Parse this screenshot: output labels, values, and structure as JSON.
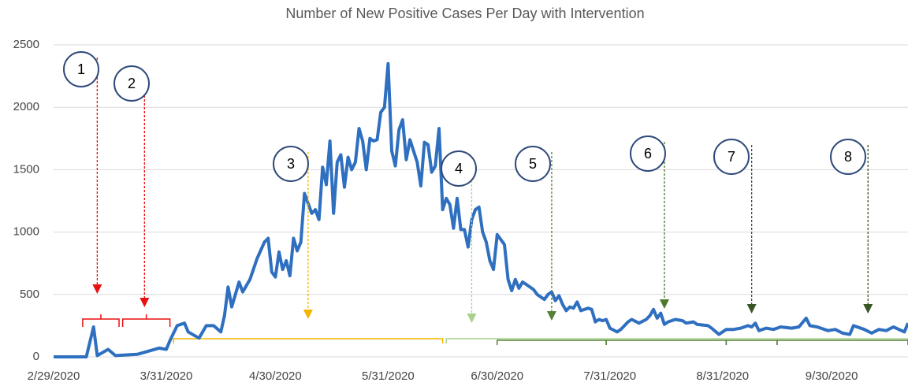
{
  "chart_data": {
    "type": "line",
    "title": "Number of New Positive Cases Per Day with Intervention",
    "x": [
      "2/29/2020",
      "3/9/2020",
      "3/11/2020",
      "3/12/2020",
      "3/15/2020",
      "3/17/2020",
      "3/23/2020",
      "3/29/2020",
      "3/31/2020",
      "4/1/2020",
      "4/3/2020",
      "4/5/2020",
      "4/6/2020",
      "4/9/2020",
      "4/11/2020",
      "4/13/2020",
      "4/15/2020",
      "4/16/2020",
      "4/17/2020",
      "4/18/2020",
      "4/20/2020",
      "4/21/2020",
      "4/23/2020",
      "4/25/2020",
      "4/27/2020",
      "4/28/2020",
      "4/29/2020",
      "4/30/2020",
      "5/1/2020",
      "5/2/2020",
      "5/3/2020",
      "5/4/2020",
      "5/5/2020",
      "5/6/2020",
      "5/7/2020",
      "5/8/2020",
      "5/10/2020",
      "5/11/2020",
      "5/12/2020",
      "5/13/2020",
      "5/14/2020",
      "5/15/2020",
      "5/16/2020",
      "5/17/2020",
      "5/18/2020",
      "5/19/2020",
      "5/20/2020",
      "5/21/2020",
      "5/22/2020",
      "5/23/2020",
      "5/24/2020",
      "5/25/2020",
      "5/26/2020",
      "5/27/2020",
      "5/28/2020",
      "5/29/2020",
      "5/30/2020",
      "5/31/2020",
      "6/1/2020",
      "6/2/2020",
      "6/3/2020",
      "6/4/2020",
      "6/5/2020",
      "6/6/2020",
      "6/7/2020",
      "6/8/2020",
      "6/9/2020",
      "6/10/2020",
      "6/11/2020",
      "6/12/2020",
      "6/13/2020",
      "6/14/2020",
      "6/15/2020",
      "6/16/2020",
      "6/17/2020",
      "6/18/2020",
      "6/19/2020",
      "6/20/2020",
      "6/21/2020",
      "6/22/2020",
      "6/23/2020",
      "6/24/2020",
      "6/25/2020",
      "6/26/2020",
      "6/27/2020",
      "6/28/2020",
      "6/29/2020",
      "6/30/2020",
      "7/2/2020",
      "7/3/2020",
      "7/4/2020",
      "7/5/2020",
      "7/6/2020",
      "7/7/2020",
      "7/8/2020",
      "7/10/2020",
      "7/11/2020",
      "7/13/2020",
      "7/14/2020",
      "7/15/2020",
      "7/16/2020",
      "7/17/2020",
      "7/18/2020",
      "7/19/2020",
      "7/20/2020",
      "7/21/2020",
      "7/22/2020",
      "7/23/2020",
      "7/25/2020",
      "7/26/2020",
      "7/27/2020",
      "7/28/2020",
      "7/29/2020",
      "7/30/2020",
      "7/31/2020",
      "8/2/2020",
      "8/3/2020",
      "8/5/2020",
      "8/6/2020",
      "8/8/2020",
      "8/10/2020",
      "8/11/2020",
      "8/12/2020",
      "8/13/2020",
      "8/14/2020",
      "8/15/2020",
      "8/16/2020",
      "8/18/2020",
      "8/20/2020",
      "8/21/2020",
      "8/23/2020",
      "8/24/2020",
      "8/27/2020",
      "8/28/2020",
      "8/30/2020",
      "9/1/2020",
      "9/3/2020",
      "9/5/2020",
      "9/7/2020",
      "9/8/2020",
      "9/9/2020",
      "9/10/2020",
      "9/12/2020",
      "9/14/2020",
      "9/16/2020",
      "9/19/2020",
      "9/21/2020",
      "9/23/2020",
      "9/24/2020",
      "9/26/2020",
      "9/29/2020",
      "10/1/2020",
      "10/3/2020",
      "10/5/2020",
      "10/6/2020",
      "10/9/2020",
      "10/11/2020",
      "10/13/2020",
      "10/15/2020",
      "10/17/2020",
      "10/20/2020",
      "10/21/2020"
    ],
    "series": [
      {
        "color": "#2e6fc0",
        "values": [
          0,
          0,
          240,
          10,
          60,
          10,
          20,
          70,
          60,
          130,
          250,
          270,
          200,
          150,
          250,
          250,
          200,
          330,
          560,
          400,
          600,
          520,
          620,
          790,
          920,
          950,
          680,
          640,
          840,
          700,
          770,
          650,
          950,
          850,
          920,
          1310,
          1150,
          1180,
          1100,
          1520,
          1380,
          1730,
          1150,
          1560,
          1620,
          1360,
          1600,
          1500,
          1560,
          1830,
          1730,
          1500,
          1750,
          1730,
          1740,
          1960,
          2000,
          2350,
          1650,
          1530,
          1820,
          1900,
          1580,
          1740,
          1650,
          1560,
          1370,
          1720,
          1700,
          1480,
          1530,
          1830,
          1180,
          1270,
          1220,
          1030,
          1270,
          1020,
          1020,
          880,
          1100,
          1180,
          1200,
          1000,
          920,
          770,
          700,
          980,
          900,
          620,
          530,
          620,
          550,
          600,
          580,
          540,
          500,
          460,
          500,
          520,
          450,
          490,
          420,
          370,
          400,
          390,
          440,
          370,
          390,
          380,
          280,
          300,
          290,
          300,
          230,
          200,
          220,
          280,
          300,
          270,
          300,
          330,
          380,
          310,
          350,
          260,
          280,
          300,
          290,
          270,
          280,
          260,
          250,
          230,
          180,
          220,
          220,
          230,
          250,
          240,
          270,
          210,
          230,
          220,
          240,
          230,
          240,
          310,
          250,
          240,
          210,
          220,
          190,
          180,
          250,
          220,
          190,
          220,
          210,
          240,
          200,
          270
        ]
      }
    ],
    "xlim": [
      "2/29/2020",
      "10/21/2020"
    ],
    "xticks": [
      "2/29/2020",
      "3/31/2020",
      "4/30/2020",
      "5/31/2020",
      "6/30/2020",
      "7/31/2020",
      "8/31/2020",
      "9/30/2020"
    ],
    "ylim": [
      0,
      2500
    ],
    "yticks": [
      0,
      500,
      1000,
      1500,
      2000,
      2500
    ],
    "grid": true,
    "annotations": [
      {
        "label": "1",
        "x": "3/12/2020",
        "color": "#e81010"
      },
      {
        "label": "2",
        "x": "3/25/2020",
        "color": "#e81010"
      },
      {
        "label": "3",
        "x": "5/9/2020",
        "color": "#f2b600"
      },
      {
        "label": "4",
        "x": "6/23/2020",
        "color": "#a9d18e"
      },
      {
        "label": "5",
        "x": "7/15/2020",
        "color": "#548235"
      },
      {
        "label": "6",
        "x": "8/15/2020",
        "color": "#4a7a2a"
      },
      {
        "label": "7",
        "x": "9/8/2020",
        "color": "#375623"
      },
      {
        "label": "8",
        "x": "10/10/2020",
        "color": "#375623"
      }
    ],
    "brackets": [
      {
        "start": "3/8/2020",
        "end": "3/18/2020",
        "color": "#e81010"
      },
      {
        "start": "3/19/2020",
        "end": "4/1/2020",
        "color": "#e81010"
      },
      {
        "start": "4/2/2020",
        "end": "6/15/2020",
        "color": "#f2b600"
      },
      {
        "start": "6/16/2020",
        "end": "10/21/2020",
        "color": "#a9d18e"
      },
      {
        "start": "6/30/2020",
        "end": "7/30/2020",
        "color": "#548235"
      },
      {
        "start": "7/30/2020",
        "end": "9/1/2020",
        "color": "#548235"
      },
      {
        "start": "9/1/2020",
        "end": "9/15/2020",
        "color": "#548235"
      },
      {
        "start": "9/15/2020",
        "end": "10/21/2020",
        "color": "#548235"
      }
    ]
  }
}
